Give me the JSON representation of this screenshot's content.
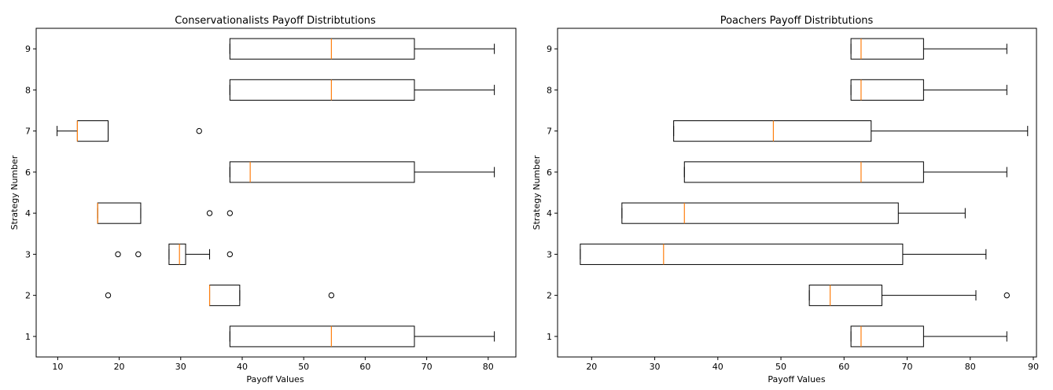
{
  "chart_data": [
    {
      "type": "boxplot",
      "orientation": "horizontal",
      "title": "Conservationalists Payoff Distribtutions",
      "xlabel": "Payoff Values",
      "ylabel": "Strategy Number",
      "xlim": [
        6.5,
        84.5
      ],
      "xticks": [
        10,
        20,
        30,
        40,
        50,
        60,
        70,
        80
      ],
      "categories": [
        "1",
        "2",
        "3",
        "4",
        "6",
        "7",
        "8",
        "9"
      ],
      "boxes": [
        {
          "label": "1",
          "whislo": 38,
          "q1": 38,
          "med": 54.5,
          "q3": 68,
          "whishi": 81,
          "fliers": []
        },
        {
          "label": "2",
          "whislo": 34.7,
          "q1": 34.7,
          "med": 34.7,
          "q3": 39.6,
          "whishi": 39.6,
          "fliers": [
            18.2,
            54.5
          ]
        },
        {
          "label": "3",
          "whislo": 28.1,
          "q1": 28.1,
          "med": 29.8,
          "q3": 30.8,
          "whishi": 34.7,
          "fliers": [
            19.8,
            23.1,
            38
          ]
        },
        {
          "label": "4",
          "whislo": 16.5,
          "q1": 16.5,
          "med": 16.5,
          "q3": 23.5,
          "whishi": 23.5,
          "fliers": [
            34.7,
            38
          ]
        },
        {
          "label": "6",
          "whislo": 38,
          "q1": 38,
          "med": 41.3,
          "q3": 68,
          "whishi": 81,
          "fliers": []
        },
        {
          "label": "7",
          "whislo": 9.9,
          "q1": 13.2,
          "med": 13.2,
          "q3": 18.2,
          "whishi": 18.2,
          "fliers": [
            33
          ]
        },
        {
          "label": "8",
          "whislo": 38,
          "q1": 38,
          "med": 54.5,
          "q3": 68,
          "whishi": 81,
          "fliers": []
        },
        {
          "label": "9",
          "whislo": 38,
          "q1": 38,
          "med": 54.5,
          "q3": 68,
          "whishi": 81,
          "fliers": []
        }
      ]
    },
    {
      "type": "boxplot",
      "orientation": "horizontal",
      "title": "Poachers Payoff Distribtutions",
      "xlabel": "Payoff Values",
      "ylabel": "Strategy Number",
      "xlim": [
        14.6,
        90.5
      ],
      "xticks": [
        20,
        30,
        40,
        50,
        60,
        70,
        80,
        90
      ],
      "categories": [
        "1",
        "2",
        "3",
        "4",
        "6",
        "7",
        "8",
        "9"
      ],
      "boxes": [
        {
          "label": "1",
          "whislo": 61.1,
          "q1": 61.1,
          "med": 62.7,
          "q3": 72.6,
          "whishi": 85.8,
          "fliers": []
        },
        {
          "label": "2",
          "whislo": 54.5,
          "q1": 54.5,
          "med": 57.8,
          "q3": 66,
          "whishi": 80.9,
          "fliers": [
            85.8
          ]
        },
        {
          "label": "3",
          "whislo": 18.2,
          "q1": 18.2,
          "med": 31.4,
          "q3": 69.3,
          "whishi": 82.5,
          "fliers": []
        },
        {
          "label": "4",
          "whislo": 24.8,
          "q1": 24.8,
          "med": 34.7,
          "q3": 68.6,
          "whishi": 79.2,
          "fliers": []
        },
        {
          "label": "6",
          "whislo": 34.7,
          "q1": 34.7,
          "med": 62.7,
          "q3": 72.6,
          "whishi": 85.8,
          "fliers": []
        },
        {
          "label": "7",
          "whislo": 33,
          "q1": 33,
          "med": 48.8,
          "q3": 64.3,
          "whishi": 89.1,
          "fliers": []
        },
        {
          "label": "8",
          "whislo": 61.1,
          "q1": 61.1,
          "med": 62.7,
          "q3": 72.6,
          "whishi": 85.8,
          "fliers": []
        },
        {
          "label": "9",
          "whislo": 61.1,
          "q1": 61.1,
          "med": 62.7,
          "q3": 72.6,
          "whishi": 85.8,
          "fliers": []
        }
      ]
    }
  ],
  "colors": {
    "box": "#000000",
    "median": "#ff7f0e",
    "flier": "#000000"
  }
}
